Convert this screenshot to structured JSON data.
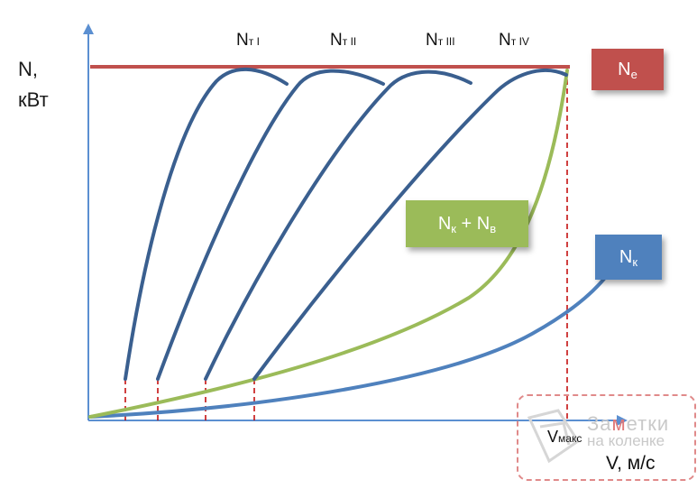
{
  "axes": {
    "y_label_line1": "N,",
    "y_label_line2": "кВт",
    "x_label": "V, м/с",
    "vmax_main": "V",
    "vmax_sub": "макс"
  },
  "gear_labels": [
    {
      "main": "N",
      "sub": "т I"
    },
    {
      "main": "N",
      "sub": "т II"
    },
    {
      "main": "N",
      "sub": "т III"
    },
    {
      "main": "N",
      "sub": "т IV"
    }
  ],
  "legend_boxes": {
    "ne": {
      "main": "N",
      "sub": "е",
      "color": "#c0504d"
    },
    "nk_nv": {
      "main": "N",
      "sub1": "к",
      "plus": " + N",
      "sub2": "в",
      "color": "#9bbb59"
    },
    "nk": {
      "main": "N",
      "sub": "к",
      "color": "#4f81bd"
    }
  },
  "colors": {
    "axis": "#5b8fd1",
    "gear_curve": "#3a5f8f",
    "ne_line": "#c0504d",
    "sum_curve": "#9bbb59",
    "nk_curve": "#4f81bd",
    "dashed": "#c00000"
  },
  "watermark": {
    "line1_a": "За",
    "line1_b": "м",
    "line1_c": "етки",
    "line2": "на коленке"
  }
}
